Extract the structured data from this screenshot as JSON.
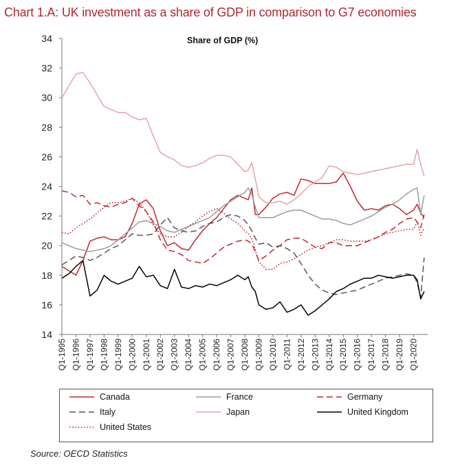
{
  "chart_title": "Chart 1.A: UK investment as a share of GDP in comparison to G7 economies",
  "chart_subtitle": "Share of GDP (%)",
  "source": "Source:  OECD Statistics",
  "chart_data": {
    "type": "line",
    "title": "Chart 1.A: UK investment as a share of GDP in comparison to G7 economies",
    "subtitle": "Share of GDP (%)",
    "xlabel": "",
    "ylabel": "",
    "ylim": [
      14,
      34
    ],
    "yticks": [
      14,
      16,
      18,
      20,
      22,
      24,
      26,
      28,
      30,
      32,
      34
    ],
    "xticks": [
      "Q1-1995",
      "Q1-1996",
      "Q1-1997",
      "Q1-1998",
      "Q1-1999",
      "Q1-2000",
      "Q1-2001",
      "Q1-2002",
      "Q1-2003",
      "Q1-2004",
      "Q1-2005",
      "Q1-2006",
      "Q1-2007",
      "Q1-2008",
      "Q1-2009",
      "Q1-2010",
      "Q1-2011",
      "Q1-2012",
      "Q1-2013",
      "Q1-2014",
      "Q1-2015",
      "Q1-2016",
      "Q1-2017",
      "Q1-2018",
      "Q1-2019",
      "Q1-2020"
    ],
    "x_start": 1995.0,
    "x_end": 2021.0,
    "grid": false,
    "legend_position": "bottom",
    "series": [
      {
        "name": "Canada",
        "color": "#c0262d",
        "dash": "solid",
        "x": [
          1995.0,
          1995.5,
          1996.0,
          1996.5,
          1997.0,
          1997.5,
          1998.0,
          1998.5,
          1999.0,
          1999.5,
          2000.0,
          2000.5,
          2001.0,
          2001.5,
          2002.0,
          2002.5,
          2003.0,
          2003.5,
          2004.0,
          2004.5,
          2005.0,
          2005.5,
          2006.0,
          2006.5,
          2007.0,
          2007.5,
          2008.0,
          2008.25,
          2008.5,
          2008.75,
          2009.0,
          2009.5,
          2010.0,
          2010.5,
          2011.0,
          2011.5,
          2012.0,
          2012.5,
          2013.0,
          2013.5,
          2014.0,
          2014.5,
          2015.0,
          2015.5,
          2016.0,
          2016.5,
          2017.0,
          2017.5,
          2018.0,
          2018.5,
          2019.0,
          2019.5,
          2020.0,
          2020.25,
          2020.5,
          2020.75
        ],
        "y": [
          18.6,
          18.3,
          18.0,
          19.0,
          20.3,
          20.5,
          20.6,
          20.4,
          20.4,
          20.6,
          21.5,
          22.8,
          23.1,
          22.5,
          21.0,
          20.0,
          20.2,
          19.8,
          19.7,
          20.4,
          21.0,
          21.5,
          21.9,
          22.5,
          23.1,
          23.4,
          23.2,
          23.1,
          23.9,
          22.1,
          22.1,
          22.6,
          23.2,
          23.5,
          23.6,
          23.4,
          24.5,
          24.4,
          24.2,
          24.2,
          24.2,
          24.3,
          24.9,
          24.0,
          23.0,
          22.4,
          22.5,
          22.4,
          22.7,
          22.8,
          22.5,
          22.1,
          22.4,
          22.8,
          22.2,
          21.9
        ]
      },
      {
        "name": "France",
        "color": "#9a9a9a",
        "dash": "solid",
        "x": [
          1995.0,
          1995.5,
          1996.0,
          1996.5,
          1997.0,
          1997.5,
          1998.0,
          1998.5,
          1999.0,
          1999.5,
          2000.0,
          2000.5,
          2001.0,
          2001.5,
          2002.0,
          2002.5,
          2003.0,
          2003.5,
          2004.0,
          2004.5,
          2005.0,
          2005.5,
          2006.0,
          2006.5,
          2007.0,
          2007.5,
          2008.0,
          2008.25,
          2008.5,
          2008.75,
          2009.0,
          2009.5,
          2010.0,
          2010.5,
          2011.0,
          2011.5,
          2012.0,
          2012.5,
          2013.0,
          2013.5,
          2014.0,
          2014.5,
          2015.0,
          2015.5,
          2016.0,
          2016.5,
          2017.0,
          2017.5,
          2018.0,
          2018.5,
          2019.0,
          2019.5,
          2020.0,
          2020.25,
          2020.5,
          2020.75
        ],
        "y": [
          20.2,
          20.0,
          19.8,
          19.7,
          19.6,
          19.7,
          19.8,
          20.0,
          20.4,
          20.8,
          21.2,
          21.6,
          21.7,
          21.5,
          21.3,
          21.0,
          20.9,
          21.1,
          21.3,
          21.5,
          21.7,
          21.9,
          22.3,
          22.7,
          23.0,
          23.3,
          23.6,
          23.9,
          23.5,
          22.6,
          21.9,
          21.9,
          21.9,
          22.1,
          22.3,
          22.4,
          22.4,
          22.2,
          22.0,
          21.8,
          21.8,
          21.7,
          21.5,
          21.4,
          21.6,
          21.8,
          22.0,
          22.3,
          22.6,
          22.8,
          23.1,
          23.5,
          23.8,
          23.9,
          22.1,
          23.4
        ]
      },
      {
        "name": "Germany",
        "color": "#c0262d",
        "dash": "dash",
        "x": [
          1995.0,
          1995.5,
          1996.0,
          1996.5,
          1997.0,
          1997.5,
          1998.0,
          1998.5,
          1999.0,
          1999.5,
          2000.0,
          2000.5,
          2001.0,
          2001.5,
          2002.0,
          2002.5,
          2003.0,
          2003.5,
          2004.0,
          2004.5,
          2005.0,
          2005.5,
          2006.0,
          2006.5,
          2007.0,
          2007.5,
          2008.0,
          2008.25,
          2008.5,
          2008.75,
          2009.0,
          2009.5,
          2010.0,
          2010.5,
          2011.0,
          2011.5,
          2012.0,
          2012.5,
          2013.0,
          2013.5,
          2014.0,
          2014.5,
          2015.0,
          2015.5,
          2016.0,
          2016.5,
          2017.0,
          2017.5,
          2018.0,
          2018.5,
          2019.0,
          2019.5,
          2020.0,
          2020.25,
          2020.5,
          2020.75
        ],
        "y": [
          23.7,
          23.6,
          23.3,
          23.4,
          22.8,
          22.9,
          22.7,
          22.6,
          22.8,
          22.9,
          23.2,
          22.7,
          22.3,
          21.6,
          20.4,
          19.7,
          19.6,
          19.4,
          19.0,
          18.9,
          18.8,
          19.1,
          19.5,
          19.9,
          20.1,
          20.3,
          20.4,
          20.3,
          20.1,
          19.6,
          19.0,
          19.3,
          19.7,
          20.0,
          20.4,
          20.5,
          20.5,
          20.2,
          19.9,
          19.8,
          20.2,
          20.2,
          20.0,
          20.0,
          20.0,
          20.2,
          20.4,
          20.6,
          20.9,
          21.1,
          21.5,
          21.8,
          21.9,
          21.6,
          21.2,
          22.1
        ]
      },
      {
        "name": "Italy",
        "color": "#555555",
        "dash": "dash",
        "x": [
          1995.0,
          1995.5,
          1996.0,
          1996.5,
          1997.0,
          1997.5,
          1998.0,
          1998.5,
          1999.0,
          1999.5,
          2000.0,
          2000.5,
          2001.0,
          2001.5,
          2002.0,
          2002.5,
          2003.0,
          2003.5,
          2004.0,
          2004.5,
          2005.0,
          2005.5,
          2006.0,
          2006.5,
          2007.0,
          2007.5,
          2008.0,
          2008.25,
          2008.5,
          2008.75,
          2009.0,
          2009.5,
          2010.0,
          2010.5,
          2011.0,
          2011.5,
          2012.0,
          2012.5,
          2013.0,
          2013.5,
          2014.0,
          2014.5,
          2015.0,
          2015.5,
          2016.0,
          2016.5,
          2017.0,
          2017.5,
          2018.0,
          2018.5,
          2019.0,
          2019.5,
          2020.0,
          2020.25,
          2020.5,
          2020.75
        ],
        "y": [
          18.7,
          19.0,
          19.3,
          19.2,
          19.0,
          19.2,
          19.5,
          19.8,
          20.0,
          20.4,
          20.8,
          20.7,
          20.7,
          20.8,
          21.4,
          21.9,
          21.2,
          21.0,
          20.9,
          21.0,
          21.3,
          21.5,
          21.6,
          21.9,
          22.1,
          22.0,
          21.7,
          21.4,
          21.0,
          20.5,
          20.1,
          20.2,
          19.9,
          20.0,
          19.8,
          19.5,
          18.8,
          18.0,
          17.4,
          17.0,
          16.8,
          16.7,
          16.8,
          16.9,
          17.0,
          17.2,
          17.4,
          17.6,
          17.8,
          17.9,
          18.0,
          18.1,
          18.0,
          17.5,
          16.5,
          19.2
        ]
      },
      {
        "name": "Japan",
        "color": "#e8a2a5",
        "dash": "solid",
        "x": [
          1995.0,
          1995.5,
          1996.0,
          1996.5,
          1997.0,
          1997.5,
          1998.0,
          1998.5,
          1999.0,
          1999.5,
          2000.0,
          2000.5,
          2001.0,
          2001.5,
          2002.0,
          2002.5,
          2003.0,
          2003.5,
          2004.0,
          2004.5,
          2005.0,
          2005.5,
          2006.0,
          2006.5,
          2007.0,
          2007.5,
          2008.0,
          2008.25,
          2008.5,
          2008.75,
          2009.0,
          2009.5,
          2010.0,
          2010.5,
          2011.0,
          2011.5,
          2012.0,
          2012.5,
          2013.0,
          2013.5,
          2014.0,
          2014.5,
          2015.0,
          2015.5,
          2016.0,
          2016.5,
          2017.0,
          2017.5,
          2018.0,
          2018.5,
          2019.0,
          2019.5,
          2020.0,
          2020.25,
          2020.5,
          2020.75
        ],
        "y": [
          30.0,
          30.8,
          31.6,
          31.7,
          31.0,
          30.2,
          29.4,
          29.2,
          29.0,
          29.0,
          28.7,
          28.5,
          28.6,
          27.4,
          26.3,
          26.0,
          25.8,
          25.4,
          25.3,
          25.4,
          25.6,
          25.9,
          26.1,
          26.1,
          26.0,
          25.5,
          25.0,
          25.1,
          25.6,
          24.5,
          23.3,
          22.9,
          22.9,
          23.0,
          22.8,
          23.1,
          23.5,
          24.0,
          24.3,
          24.6,
          25.4,
          25.3,
          25.0,
          24.9,
          24.8,
          24.9,
          25.0,
          25.1,
          25.2,
          25.3,
          25.4,
          25.5,
          25.5,
          26.5,
          25.5,
          24.7
        ]
      },
      {
        "name": "United Kingdom",
        "color": "#000000",
        "dash": "solid",
        "x": [
          1995.0,
          1995.5,
          1996.0,
          1996.5,
          1997.0,
          1997.5,
          1998.0,
          1998.5,
          1999.0,
          1999.5,
          2000.0,
          2000.5,
          2001.0,
          2001.5,
          2002.0,
          2002.5,
          2003.0,
          2003.5,
          2004.0,
          2004.5,
          2005.0,
          2005.5,
          2006.0,
          2006.5,
          2007.0,
          2007.5,
          2008.0,
          2008.25,
          2008.5,
          2008.75,
          2009.0,
          2009.5,
          2010.0,
          2010.5,
          2011.0,
          2011.5,
          2012.0,
          2012.5,
          2013.0,
          2013.5,
          2014.0,
          2014.5,
          2015.0,
          2015.5,
          2016.0,
          2016.5,
          2017.0,
          2017.5,
          2018.0,
          2018.5,
          2019.0,
          2019.5,
          2020.0,
          2020.25,
          2020.5,
          2020.75
        ],
        "y": [
          17.8,
          18.1,
          18.6,
          19.0,
          16.6,
          17.0,
          18.0,
          17.6,
          17.4,
          17.6,
          17.8,
          18.6,
          17.9,
          18.0,
          17.3,
          17.1,
          18.4,
          17.2,
          17.1,
          17.3,
          17.2,
          17.4,
          17.3,
          17.5,
          17.7,
          18.0,
          17.7,
          17.9,
          17.2,
          16.9,
          16.0,
          15.7,
          15.8,
          16.2,
          15.5,
          15.7,
          16.0,
          15.3,
          15.6,
          16.0,
          16.4,
          16.9,
          17.1,
          17.4,
          17.6,
          17.8,
          17.8,
          18.0,
          17.9,
          17.8,
          17.9,
          18.0,
          18.0,
          17.7,
          16.4,
          16.9
        ]
      },
      {
        "name": "United States",
        "color": "#c0262d",
        "dash": "dot",
        "x": [
          1995.0,
          1995.5,
          1996.0,
          1996.5,
          1997.0,
          1997.5,
          1998.0,
          1998.5,
          1999.0,
          1999.5,
          2000.0,
          2000.5,
          2001.0,
          2001.5,
          2002.0,
          2002.5,
          2003.0,
          2003.5,
          2004.0,
          2004.5,
          2005.0,
          2005.5,
          2006.0,
          2006.5,
          2007.0,
          2007.5,
          2008.0,
          2008.25,
          2008.5,
          2008.75,
          2009.0,
          2009.5,
          2010.0,
          2010.5,
          2011.0,
          2011.5,
          2012.0,
          2012.5,
          2013.0,
          2013.5,
          2014.0,
          2014.5,
          2015.0,
          2015.5,
          2016.0,
          2016.5,
          2017.0,
          2017.5,
          2018.0,
          2018.5,
          2019.0,
          2019.5,
          2020.0,
          2020.25,
          2020.5,
          2020.75
        ],
        "y": [
          20.9,
          20.8,
          21.2,
          21.5,
          21.8,
          22.2,
          22.6,
          22.9,
          22.9,
          23.0,
          23.2,
          22.9,
          22.3,
          21.4,
          20.8,
          20.6,
          20.6,
          20.9,
          21.3,
          21.6,
          22.0,
          22.3,
          22.5,
          22.2,
          21.8,
          21.5,
          21.0,
          20.8,
          20.5,
          19.7,
          18.9,
          18.4,
          18.4,
          18.8,
          18.9,
          19.1,
          19.4,
          19.7,
          19.9,
          20.0,
          20.2,
          20.4,
          20.4,
          20.3,
          20.3,
          20.3,
          20.4,
          20.6,
          20.8,
          20.9,
          21.0,
          21.1,
          21.1,
          21.6,
          20.7,
          21.2
        ]
      }
    ]
  }
}
